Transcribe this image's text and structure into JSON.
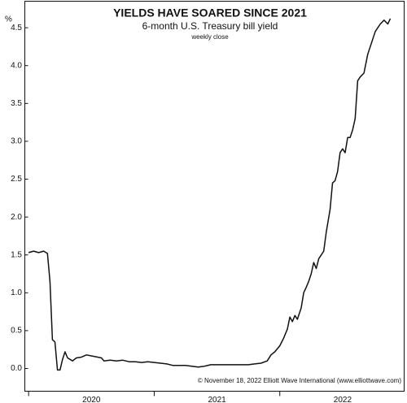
{
  "chart_data": {
    "type": "line",
    "title": "YIELDS HAVE SOARED SINCE 2021",
    "subtitle": "6-month U.S. Treasury bill yield",
    "note": "weekly close",
    "y_label": "%",
    "credit": "© November 18, 2022 Elliott Wave International (www.elliottwave.com)",
    "xlim": [
      2019.97,
      2022.99
    ],
    "xticks": [
      {
        "value": 2020,
        "label": "2020"
      },
      {
        "value": 2021,
        "label": "2021"
      },
      {
        "value": 2022,
        "label": "2022"
      }
    ],
    "ylim": [
      -0.3,
      4.85
    ],
    "yticks": [
      {
        "value": 0,
        "label": "0.0"
      },
      {
        "value": 0.5,
        "label": "0.5"
      },
      {
        "value": 1,
        "label": "1.0"
      },
      {
        "value": 1.5,
        "label": "1.5"
      },
      {
        "value": 2,
        "label": "2.0"
      },
      {
        "value": 2.5,
        "label": "2.5"
      },
      {
        "value": 3,
        "label": "3.0"
      },
      {
        "value": 3.5,
        "label": "3.5"
      },
      {
        "value": 4,
        "label": "4.0"
      },
      {
        "value": 4.5,
        "label": "4.5"
      }
    ],
    "grid": false,
    "series": [
      {
        "name": "6-month U.S. Treasury bill yield",
        "color": "#111111",
        "x": [
          2020.0,
          2020.04,
          2020.08,
          2020.12,
          2020.15,
          2020.17,
          2020.19,
          2020.21,
          2020.23,
          2020.25,
          2020.27,
          2020.29,
          2020.31,
          2020.35,
          2020.38,
          2020.42,
          2020.46,
          2020.52,
          2020.58,
          2020.6,
          2020.65,
          2020.7,
          2020.75,
          2020.8,
          2020.85,
          2020.9,
          2020.95,
          2021.0,
          2021.05,
          2021.1,
          2021.15,
          2021.2,
          2021.25,
          2021.3,
          2021.35,
          2021.4,
          2021.45,
          2021.5,
          2021.55,
          2021.6,
          2021.65,
          2021.7,
          2021.75,
          2021.8,
          2021.85,
          2021.9,
          2021.93,
          2021.96,
          2022.0,
          2022.03,
          2022.06,
          2022.08,
          2022.1,
          2022.12,
          2022.14,
          2022.17,
          2022.19,
          2022.21,
          2022.23,
          2022.25,
          2022.27,
          2022.29,
          2022.31,
          2022.33,
          2022.35,
          2022.37,
          2022.4,
          2022.42,
          2022.44,
          2022.46,
          2022.48,
          2022.5,
          2022.52,
          2022.54,
          2022.56,
          2022.58,
          2022.6,
          2022.62,
          2022.64,
          2022.67,
          2022.7,
          2022.73,
          2022.76,
          2022.8,
          2022.83,
          2022.86,
          2022.88
        ],
        "values": [
          1.53,
          1.55,
          1.53,
          1.55,
          1.52,
          1.15,
          0.38,
          0.35,
          -0.02,
          -0.02,
          0.12,
          0.22,
          0.14,
          0.1,
          0.14,
          0.15,
          0.18,
          0.16,
          0.14,
          0.1,
          0.11,
          0.1,
          0.11,
          0.09,
          0.09,
          0.08,
          0.09,
          0.08,
          0.07,
          0.06,
          0.04,
          0.04,
          0.04,
          0.03,
          0.02,
          0.03,
          0.05,
          0.05,
          0.05,
          0.05,
          0.05,
          0.05,
          0.05,
          0.06,
          0.07,
          0.1,
          0.18,
          0.22,
          0.3,
          0.4,
          0.52,
          0.68,
          0.62,
          0.7,
          0.65,
          0.8,
          1.0,
          1.07,
          1.15,
          1.25,
          1.4,
          1.32,
          1.45,
          1.5,
          1.55,
          1.8,
          2.1,
          2.45,
          2.48,
          2.6,
          2.85,
          2.9,
          2.85,
          3.05,
          3.05,
          3.15,
          3.3,
          3.8,
          3.85,
          3.9,
          4.15,
          4.3,
          4.45,
          4.55,
          4.6,
          4.55,
          4.62
        ]
      }
    ]
  }
}
